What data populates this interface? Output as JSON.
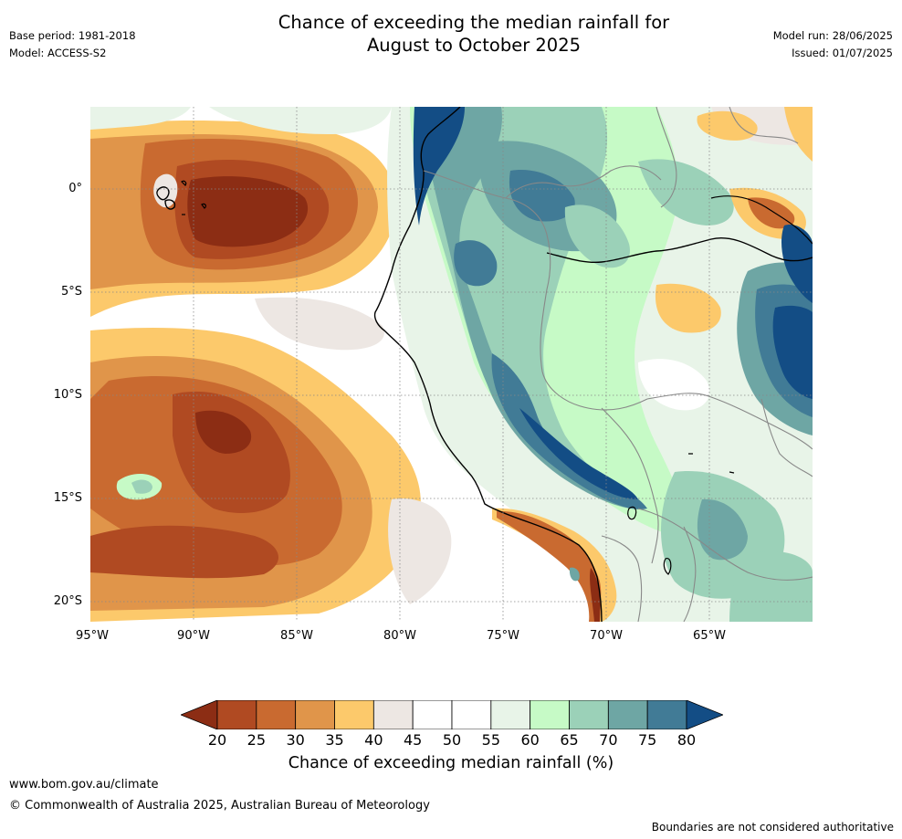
{
  "title": {
    "line1": "Chance of exceeding the median rainfall for",
    "line2": "August to October 2025"
  },
  "meta_left": {
    "base_period": "Base period: 1981-2018",
    "model": "Model: ACCESS-S2"
  },
  "meta_right": {
    "model_run": "Model run: 28/06/2025",
    "issued": "Issued: 01/07/2025"
  },
  "map": {
    "region": "Western South America and eastern Pacific",
    "lat_labels": [
      "0°",
      "5°S",
      "10°S",
      "15°S",
      "20°S"
    ],
    "lon_labels": [
      "95°W",
      "90°W",
      "85°W",
      "80°W",
      "75°W",
      "70°W",
      "65°W"
    ],
    "gridlines": "dotted"
  },
  "colorbar": {
    "ticks": [
      "20",
      "25",
      "30",
      "35",
      "40",
      "45",
      "50",
      "55",
      "60",
      "65",
      "70",
      "75",
      "80"
    ],
    "colors": [
      "#8c2d14",
      "#b04a22",
      "#c96a30",
      "#e0954a",
      "#fcc96b",
      "#ede7e3",
      "#ffffff",
      "#ffffff",
      "#e8f4e8",
      "#c6fac6",
      "#9bd1b8",
      "#6ea6a4",
      "#417b96",
      "#134d85"
    ],
    "label": "Chance of exceeding median rainfall (%)"
  },
  "footer": {
    "url": "www.bom.gov.au/climate",
    "copyright": "© Commonwealth of Australia 2025, Australian Bureau of Meteorology",
    "disclaimer": "Boundaries are not considered authoritative"
  }
}
